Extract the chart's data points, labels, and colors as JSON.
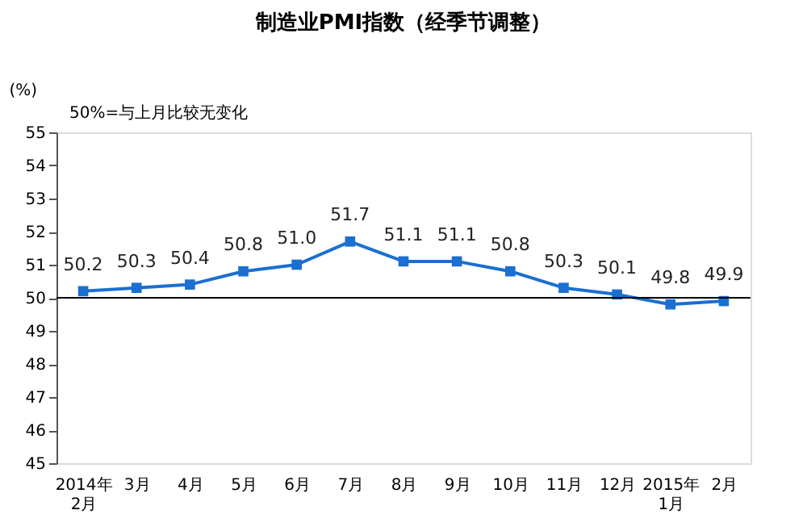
{
  "chart_data": {
    "type": "line",
    "title": "制造业PMI指数（经季节调整）",
    "ylabel": "(%)",
    "annotations": [
      "50%=与上月比较无变化"
    ],
    "categories": [
      "2014年\n2月",
      "3月",
      "4月",
      "5月",
      "6月",
      "7月",
      "8月",
      "9月",
      "10月",
      "11月",
      "12月",
      "2015年\n1月",
      "2月"
    ],
    "series": [
      {
        "color": "#1a6fd1",
        "values": [
          50.2,
          50.3,
          50.4,
          50.8,
          51.0,
          51.7,
          51.1,
          51.1,
          50.8,
          50.3,
          50.1,
          49.8,
          49.9
        ],
        "value_labels": [
          "50.2",
          "50.3",
          "50.4",
          "50.8",
          "51.0",
          "51.7",
          "51.1",
          "51.1",
          "50.8",
          "50.3",
          "50.1",
          "49.8",
          "49.9"
        ]
      }
    ],
    "ylim": [
      45,
      55
    ],
    "yticks": [
      45,
      46,
      47,
      48,
      49,
      50,
      51,
      52,
      53,
      54,
      55
    ],
    "ref_lines": [
      {
        "axis": "y",
        "value": 50,
        "color": "#000000"
      }
    ],
    "marker": "square",
    "line_style": "solid"
  }
}
